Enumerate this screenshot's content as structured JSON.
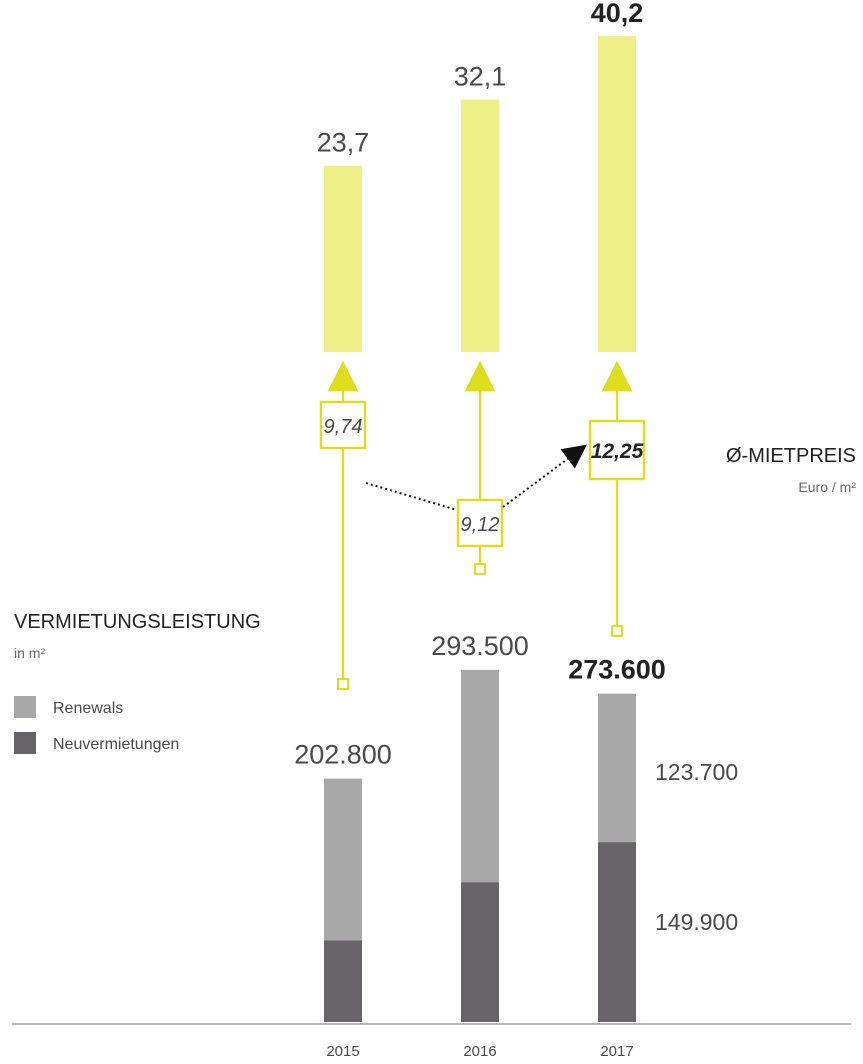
{
  "chart_data": {
    "type": "bar",
    "years": [
      "2015",
      "2016",
      "2017"
    ],
    "rent_area": {
      "title": "VERMIETUNGSLEISTUNG",
      "unit": "in m²",
      "series": [
        {
          "name": "Renewals",
          "values": [
            null,
            null,
            123700
          ]
        },
        {
          "name": "Neuvermietungen",
          "values": [
            null,
            null,
            149900
          ]
        }
      ],
      "totals": [
        202800,
        293500,
        273600
      ],
      "total_labels": [
        "202.800",
        "293.500",
        "273.600"
      ],
      "segment_labels_2017": {
        "renewals": "123.700",
        "neuvermietungen": "149.900"
      },
      "estimated_neuvermietungen": [
        68000,
        116500,
        149900
      ],
      "colors": {
        "renewals": "#a9a9a9",
        "neuvermietungen": "#666466"
      }
    },
    "top_bars": {
      "values": [
        23.7,
        32.1,
        40.2
      ],
      "labels": [
        "23,7",
        "32,1",
        "40,2"
      ],
      "color": "#efef88"
    },
    "rent_price": {
      "title": "Ø-MIETPREIS",
      "unit": "Euro / m²",
      "values": [
        9.74,
        9.12,
        12.25
      ],
      "labels": [
        "9,74",
        "9,12",
        "12,25"
      ],
      "color": "#dede1a"
    }
  }
}
